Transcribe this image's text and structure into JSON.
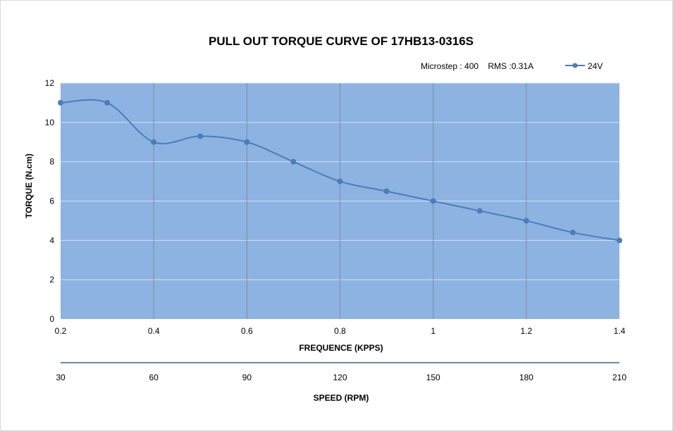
{
  "chart_data": {
    "type": "line",
    "title": "PULL OUT TORQUE CURVE OF 17HB13-0316S",
    "subtitle": "Microstep : 400    RMS :0.31A",
    "xlabel": "FREQUENCE (KPPS)",
    "ylabel": "TORQUE (N.cm)",
    "x2label": "SPEED (RPM)",
    "xlim": [
      0.2,
      1.4
    ],
    "ylim": [
      0,
      12
    ],
    "xticks": [
      "0.2",
      "0.4",
      "0.6",
      "0.8",
      "1",
      "1.2",
      "1.4"
    ],
    "yticks": [
      "0",
      "2",
      "4",
      "6",
      "8",
      "10",
      "12"
    ],
    "x2ticks": [
      "30",
      "60",
      "90",
      "120",
      "150",
      "180",
      "210"
    ],
    "grid": true,
    "legend": "top-right",
    "series": [
      {
        "name": "24V",
        "color": "#4a7ebb",
        "x": [
          0.2,
          0.3,
          0.4,
          0.5,
          0.6,
          0.7,
          0.8,
          0.9,
          1.0,
          1.1,
          1.2,
          1.3,
          1.4
        ],
        "values": [
          11,
          11,
          9,
          9.3,
          9,
          8,
          7,
          6.5,
          6,
          5.5,
          5,
          4.4,
          4
        ]
      }
    ],
    "plot_background": "#8db3e2",
    "axis_line_color": "#31667a"
  }
}
